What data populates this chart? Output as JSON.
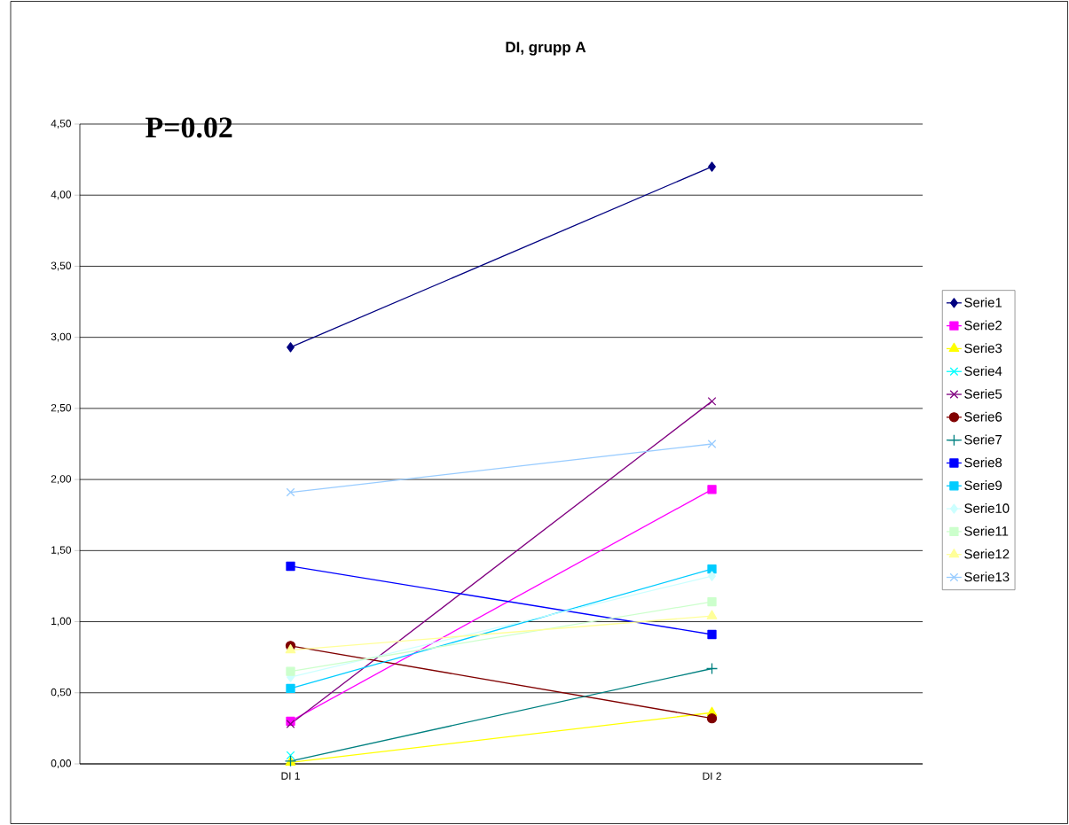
{
  "chart_data": {
    "type": "line",
    "title": "DI, grupp A",
    "categories": [
      "DI 1",
      "DI 2"
    ],
    "series": [
      {
        "name": "Serie1",
        "color": "#000080",
        "marker": "diamond",
        "values": [
          2.93,
          4.2
        ]
      },
      {
        "name": "Serie2",
        "color": "#ff00ff",
        "marker": "square",
        "values": [
          0.3,
          1.93
        ]
      },
      {
        "name": "Serie3",
        "color": "#ffff00",
        "marker": "triangle",
        "values": [
          0.01,
          0.36
        ]
      },
      {
        "name": "Serie4",
        "color": "#00ffff",
        "marker": "cross",
        "values": [
          0.06,
          null
        ]
      },
      {
        "name": "Serie5",
        "color": "#800080",
        "marker": "cross",
        "values": [
          0.28,
          2.55
        ]
      },
      {
        "name": "Serie6",
        "color": "#800000",
        "marker": "circle",
        "values": [
          0.83,
          0.32
        ]
      },
      {
        "name": "Serie7",
        "color": "#008080",
        "marker": "plus",
        "values": [
          0.02,
          0.67
        ]
      },
      {
        "name": "Serie8",
        "color": "#0000ff",
        "marker": "square",
        "values": [
          1.39,
          0.91
        ]
      },
      {
        "name": "Serie9",
        "color": "#00ccff",
        "marker": "square",
        "values": [
          0.53,
          1.37
        ]
      },
      {
        "name": "Serie10",
        "color": "#ccffff",
        "marker": "diamond",
        "values": [
          0.61,
          1.32
        ]
      },
      {
        "name": "Serie11",
        "color": "#ccffcc",
        "marker": "square",
        "values": [
          0.65,
          1.14
        ]
      },
      {
        "name": "Serie12",
        "color": "#ffff99",
        "marker": "triangle",
        "values": [
          0.8,
          1.04
        ]
      },
      {
        "name": "Serie13",
        "color": "#99ccff",
        "marker": "cross",
        "values": [
          1.91,
          2.25
        ]
      }
    ],
    "ylim": [
      0,
      4.5
    ],
    "yticks": [
      {
        "value": 0,
        "label": "0,00"
      },
      {
        "value": 0.5,
        "label": "0,50"
      },
      {
        "value": 1,
        "label": "1,00"
      },
      {
        "value": 1.5,
        "label": "1,50"
      },
      {
        "value": 2,
        "label": "2,00"
      },
      {
        "value": 2.5,
        "label": "2,50"
      },
      {
        "value": 3,
        "label": "3,00"
      },
      {
        "value": 3.5,
        "label": "3,50"
      },
      {
        "value": 4,
        "label": "4,00"
      },
      {
        "value": 4.5,
        "label": "4,50"
      }
    ],
    "grid": "y",
    "legend": "right",
    "annotations": [
      "P=0.02"
    ]
  }
}
